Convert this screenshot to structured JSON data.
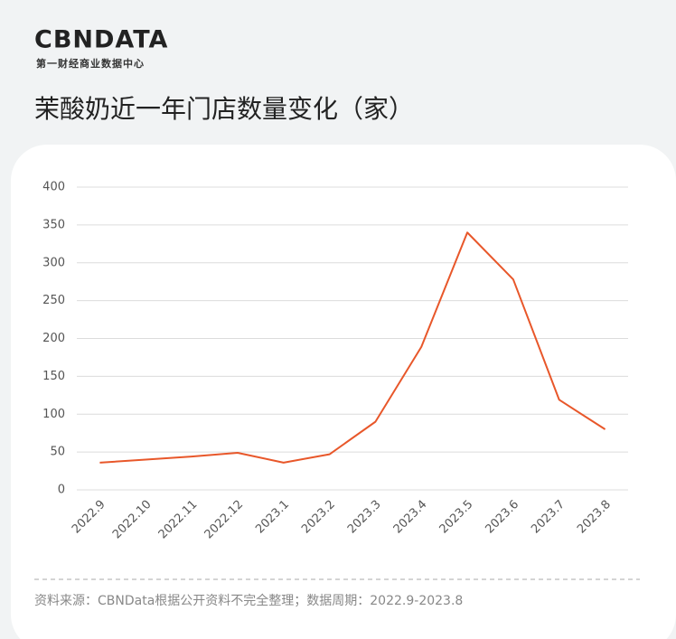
{
  "logo": {
    "name": "CBNDATA",
    "tagline": "第一财经商业数据中心"
  },
  "chart_data": {
    "type": "line",
    "title": "茉酸奶近一年门店数量变化（家）",
    "categories": [
      "2022.9",
      "2022.10",
      "2022.11",
      "2022.12",
      "2023.1",
      "2023.2",
      "2023.3",
      "2023.4",
      "2023.5",
      "2023.6",
      "2023.7",
      "2023.8"
    ],
    "values": [
      36,
      40,
      44,
      49,
      36,
      47,
      90,
      189,
      340,
      278,
      119,
      80
    ],
    "color": "#e8572a",
    "ylim": [
      0,
      400
    ],
    "yticks": [
      0,
      50,
      100,
      150,
      200,
      250,
      300,
      350,
      400
    ],
    "grid": true,
    "source": "资料来源：CBNData根据公开资料不完全整理；数据周期：2022.9-2023.8"
  }
}
